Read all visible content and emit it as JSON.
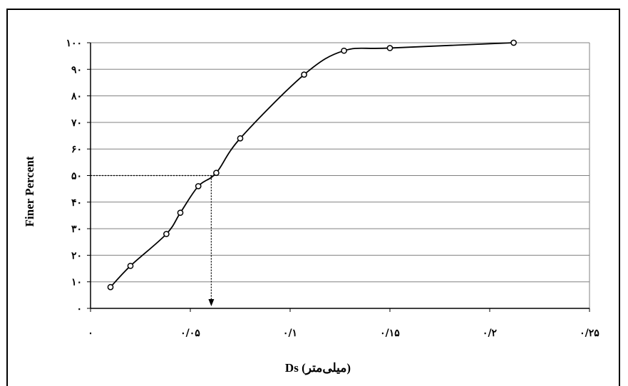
{
  "chart_data": {
    "type": "line",
    "title": "",
    "xlabel": "Ds (میلی‌متر)",
    "ylabel": "Finer Percent",
    "xlim": [
      0,
      0.25
    ],
    "ylim": [
      0,
      100
    ],
    "x_ticks": [
      0,
      0.05,
      0.1,
      0.15,
      0.2,
      0.25
    ],
    "x_tick_labels": [
      "۰",
      "۰/۰۵",
      "۰/۱",
      "۰/۱۵",
      "۰/۲",
      "۰/۲۵"
    ],
    "y_ticks": [
      0,
      10,
      20,
      30,
      40,
      50,
      60,
      70,
      80,
      90,
      100
    ],
    "y_tick_labels": [
      "۰",
      "۱۰",
      "۲۰",
      "۳۰",
      "۴۰",
      "۵۰",
      "۶۰",
      "۷۰",
      "۸۰",
      "۹۰",
      "۱۰۰"
    ],
    "grid": "horizontal",
    "series": [
      {
        "x": [
          0.01,
          0.02,
          0.038,
          0.045,
          0.054,
          0.063,
          0.075,
          0.107,
          0.127,
          0.15,
          0.212
        ],
        "y": [
          8,
          16,
          28,
          36,
          46,
          51,
          64,
          88,
          97,
          98,
          100
        ]
      }
    ],
    "annotations": [
      {
        "type": "d50-reference",
        "x": 0.063,
        "y": 50
      }
    ],
    "colors": {
      "line": "#000000",
      "grid": "#808080",
      "axis": "#000000"
    }
  }
}
